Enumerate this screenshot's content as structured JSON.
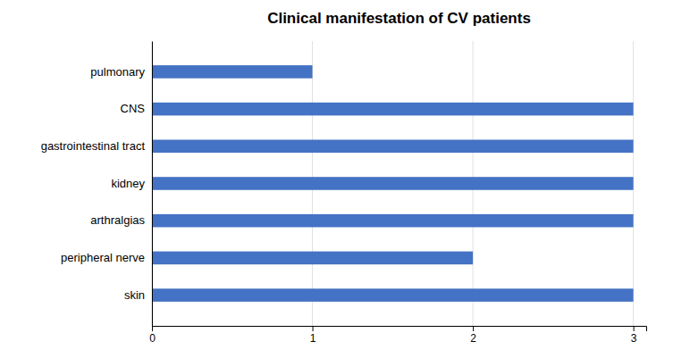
{
  "chart_data": {
    "type": "bar",
    "orientation": "horizontal",
    "title": "Clinical manifestation of CV patients",
    "categories": [
      "skin",
      "peripheral nerve",
      "arthralgias",
      "kidney",
      "gastrointestinal tract",
      "CNS",
      "pulmonary"
    ],
    "values": [
      3,
      2,
      3,
      3,
      3,
      3,
      1
    ],
    "color": "#4472C4",
    "xlim": [
      0,
      3.08
    ],
    "xticks": [
      0,
      1,
      2,
      3
    ],
    "grid": true
  }
}
